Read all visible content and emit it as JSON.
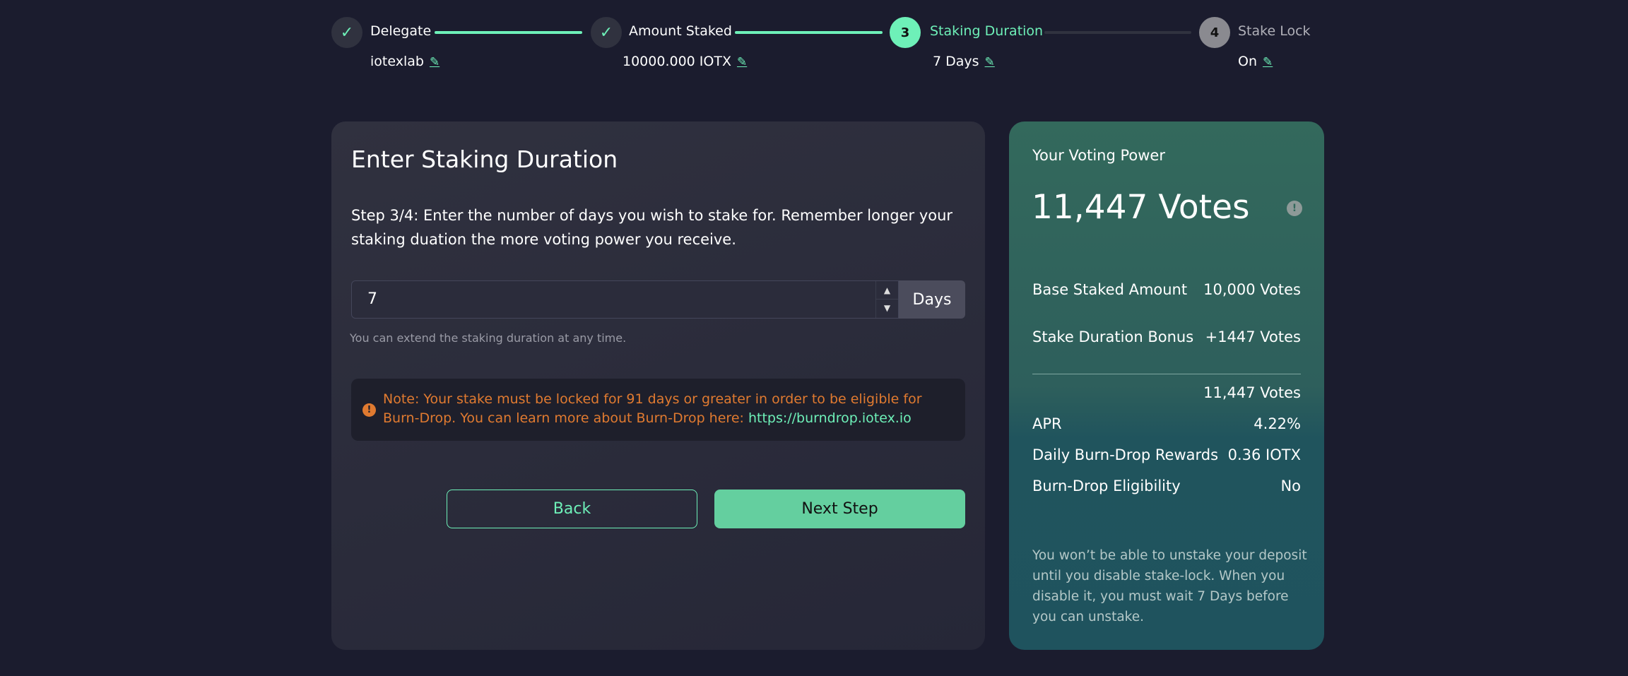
{
  "stepper": [
    {
      "number": "1",
      "label": "Delegate",
      "value": "iotexlab",
      "state": "done"
    },
    {
      "number": "2",
      "label": "Amount Staked",
      "value": "10000.000 IOTX",
      "state": "done"
    },
    {
      "number": "3",
      "label": "Staking Duration",
      "value": "7 Days",
      "state": "current"
    },
    {
      "number": "4",
      "label": "Stake Lock",
      "value": "On",
      "state": "upcoming"
    }
  ],
  "icons": {
    "check": "✓",
    "edit": "✎",
    "warning": "!",
    "info": "!",
    "up": "▲",
    "down": "▼"
  },
  "main": {
    "title": "Enter Staking Duration",
    "description": "Step 3/4: Enter the number of days you wish to stake for. Remember longer your staking duation the more voting power you receive.",
    "input_value": "7",
    "unit": "Days",
    "helper": "You can extend the staking duration at any time.",
    "note_text": "Note: Your stake must be locked for 91 days or greater in order to be eligible for Burn-Drop. You can learn more about Burn-Drop here: ",
    "note_link": "https://burndrop.iotex.io",
    "back_label": "Back",
    "next_label": "Next Step"
  },
  "voting": {
    "title": "Your Voting Power",
    "total": "11,447 Votes",
    "rows": [
      {
        "label": "Base Staked Amount",
        "value": "10,000 Votes"
      },
      {
        "label": "Stake Duration Bonus",
        "value": "+1447 Votes"
      }
    ],
    "sum": "11,447 Votes",
    "details": [
      {
        "label": "APR",
        "value": "4.22%"
      },
      {
        "label": "Daily Burn-Drop Rewards",
        "value": "0.36 IOTX"
      },
      {
        "label": "Burn-Drop Eligibility",
        "value": "No"
      }
    ],
    "footer": "You won’t be able to unstake your deposit until you disable stake-lock. When you disable it, you must wait 7 Days before you can unstake."
  },
  "colors": {
    "accent": "#6ef0b8",
    "button": "#64cf9f",
    "warning": "#e07a30",
    "background": "#1b1c2e"
  }
}
